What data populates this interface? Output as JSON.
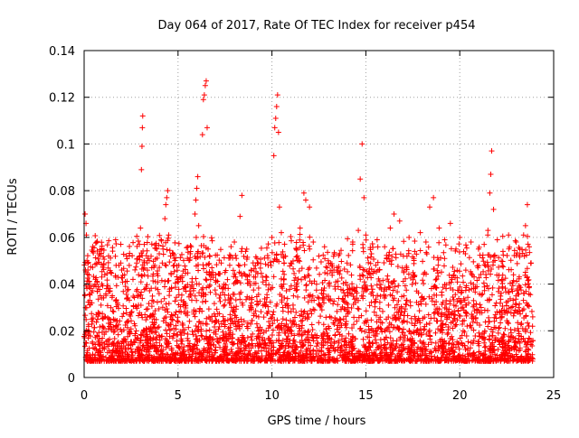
{
  "chart_data": {
    "type": "scatter",
    "title": "Day 064 of 2017, Rate Of TEC Index for receiver p454",
    "xlabel": "GPS time / hours",
    "ylabel": "ROTI / TECUs",
    "xlim": [
      0,
      25
    ],
    "ylim": [
      0,
      0.14
    ],
    "xticks": [
      0,
      5,
      10,
      15,
      20,
      25
    ],
    "xtick_labels": [
      "0",
      "5",
      "10",
      "15",
      "20",
      "25"
    ],
    "yticks": [
      0,
      0.02,
      0.04,
      0.06,
      0.08,
      0.1,
      0.12,
      0.14
    ],
    "ytick_labels": [
      "0",
      "0.02",
      "0.04",
      "0.06",
      "0.08",
      "0.1",
      "0.12",
      "0.14"
    ],
    "grid": true,
    "legend": "none",
    "marker": "plus",
    "color": "#ff0000",
    "series": [
      {
        "name": "ROTI",
        "points": [
          [
            0.05,
            0.07
          ],
          [
            0.1,
            0.066
          ],
          [
            0.12,
            0.061
          ],
          [
            0.15,
            0.05
          ],
          [
            0.2,
            0.046
          ],
          [
            0.25,
            0.041
          ],
          [
            0.3,
            0.033
          ],
          [
            0.4,
            0.025
          ],
          [
            0.6,
            0.042
          ],
          [
            0.7,
            0.037
          ],
          [
            0.9,
            0.031
          ],
          [
            1.1,
            0.044
          ],
          [
            1.3,
            0.052
          ],
          [
            1.5,
            0.035
          ],
          [
            1.7,
            0.048
          ],
          [
            2.0,
            0.046
          ],
          [
            2.2,
            0.039
          ],
          [
            2.4,
            0.052
          ],
          [
            2.6,
            0.042
          ],
          [
            2.8,
            0.049
          ],
          [
            2.9,
            0.044
          ],
          [
            3.0,
            0.064
          ],
          [
            3.05,
            0.089
          ],
          [
            3.08,
            0.099
          ],
          [
            3.1,
            0.107
          ],
          [
            3.12,
            0.112
          ],
          [
            3.2,
            0.057
          ],
          [
            3.4,
            0.051
          ],
          [
            3.6,
            0.047
          ],
          [
            3.8,
            0.041
          ],
          [
            4.0,
            0.053
          ],
          [
            4.1,
            0.059
          ],
          [
            4.2,
            0.055
          ],
          [
            4.3,
            0.068
          ],
          [
            4.35,
            0.074
          ],
          [
            4.4,
            0.077
          ],
          [
            4.45,
            0.08
          ],
          [
            4.5,
            0.061
          ],
          [
            4.6,
            0.052
          ],
          [
            4.8,
            0.048
          ],
          [
            5.0,
            0.042
          ],
          [
            5.3,
            0.038
          ],
          [
            5.5,
            0.051
          ],
          [
            5.7,
            0.056
          ],
          [
            5.9,
            0.07
          ],
          [
            5.95,
            0.076
          ],
          [
            6.0,
            0.081
          ],
          [
            6.05,
            0.086
          ],
          [
            6.1,
            0.065
          ],
          [
            6.3,
            0.104
          ],
          [
            6.35,
            0.119
          ],
          [
            6.4,
            0.121
          ],
          [
            6.45,
            0.125
          ],
          [
            6.5,
            0.127
          ],
          [
            6.55,
            0.107
          ],
          [
            6.6,
            0.055
          ],
          [
            6.8,
            0.047
          ],
          [
            7.0,
            0.044
          ],
          [
            7.3,
            0.049
          ],
          [
            7.5,
            0.045
          ],
          [
            7.8,
            0.052
          ],
          [
            8.0,
            0.058
          ],
          [
            8.3,
            0.069
          ],
          [
            8.4,
            0.078
          ],
          [
            8.6,
            0.054
          ],
          [
            8.9,
            0.046
          ],
          [
            9.2,
            0.051
          ],
          [
            9.5,
            0.043
          ],
          [
            9.8,
            0.048
          ],
          [
            10.0,
            0.06
          ],
          [
            10.1,
            0.095
          ],
          [
            10.15,
            0.107
          ],
          [
            10.2,
            0.111
          ],
          [
            10.25,
            0.116
          ],
          [
            10.3,
            0.121
          ],
          [
            10.35,
            0.105
          ],
          [
            10.4,
            0.073
          ],
          [
            10.5,
            0.062
          ],
          [
            10.7,
            0.052
          ],
          [
            11.0,
            0.049
          ],
          [
            11.3,
            0.055
          ],
          [
            11.5,
            0.064
          ],
          [
            11.7,
            0.079
          ],
          [
            11.8,
            0.076
          ],
          [
            12.0,
            0.073
          ],
          [
            12.2,
            0.058
          ],
          [
            12.5,
            0.052
          ],
          [
            12.8,
            0.056
          ],
          [
            13.0,
            0.05
          ],
          [
            13.3,
            0.046
          ],
          [
            13.6,
            0.053
          ],
          [
            14.0,
            0.049
          ],
          [
            14.3,
            0.058
          ],
          [
            14.6,
            0.063
          ],
          [
            14.7,
            0.085
          ],
          [
            14.8,
            0.1
          ],
          [
            14.9,
            0.077
          ],
          [
            15.0,
            0.061
          ],
          [
            15.3,
            0.053
          ],
          [
            15.6,
            0.059
          ],
          [
            16.0,
            0.056
          ],
          [
            16.3,
            0.064
          ],
          [
            16.5,
            0.07
          ],
          [
            16.8,
            0.067
          ],
          [
            17.0,
            0.052
          ],
          [
            17.3,
            0.06
          ],
          [
            17.6,
            0.054
          ],
          [
            17.9,
            0.062
          ],
          [
            18.2,
            0.058
          ],
          [
            18.4,
            0.073
          ],
          [
            18.6,
            0.077
          ],
          [
            18.9,
            0.064
          ],
          [
            19.2,
            0.059
          ],
          [
            19.5,
            0.066
          ],
          [
            19.8,
            0.055
          ],
          [
            20.0,
            0.06
          ],
          [
            20.3,
            0.053
          ],
          [
            20.6,
            0.058
          ],
          [
            21.0,
            0.055
          ],
          [
            21.3,
            0.057
          ],
          [
            21.5,
            0.063
          ],
          [
            21.6,
            0.079
          ],
          [
            21.65,
            0.087
          ],
          [
            21.7,
            0.097
          ],
          [
            21.8,
            0.072
          ],
          [
            22.0,
            0.059
          ],
          [
            22.3,
            0.054
          ],
          [
            22.6,
            0.061
          ],
          [
            23.0,
            0.058
          ],
          [
            23.2,
            0.055
          ],
          [
            23.4,
            0.061
          ],
          [
            23.5,
            0.065
          ],
          [
            23.6,
            0.074
          ],
          [
            23.7,
            0.056
          ],
          [
            23.8,
            0.049
          ]
        ],
        "dense_band": {
          "description": "dense cloud of measurements between 0 and 24 hours",
          "x_range": [
            0,
            23.9
          ],
          "y_floor": 0.002,
          "y_typical": [
            0.005,
            0.03
          ],
          "count": 4000
        }
      }
    ]
  }
}
